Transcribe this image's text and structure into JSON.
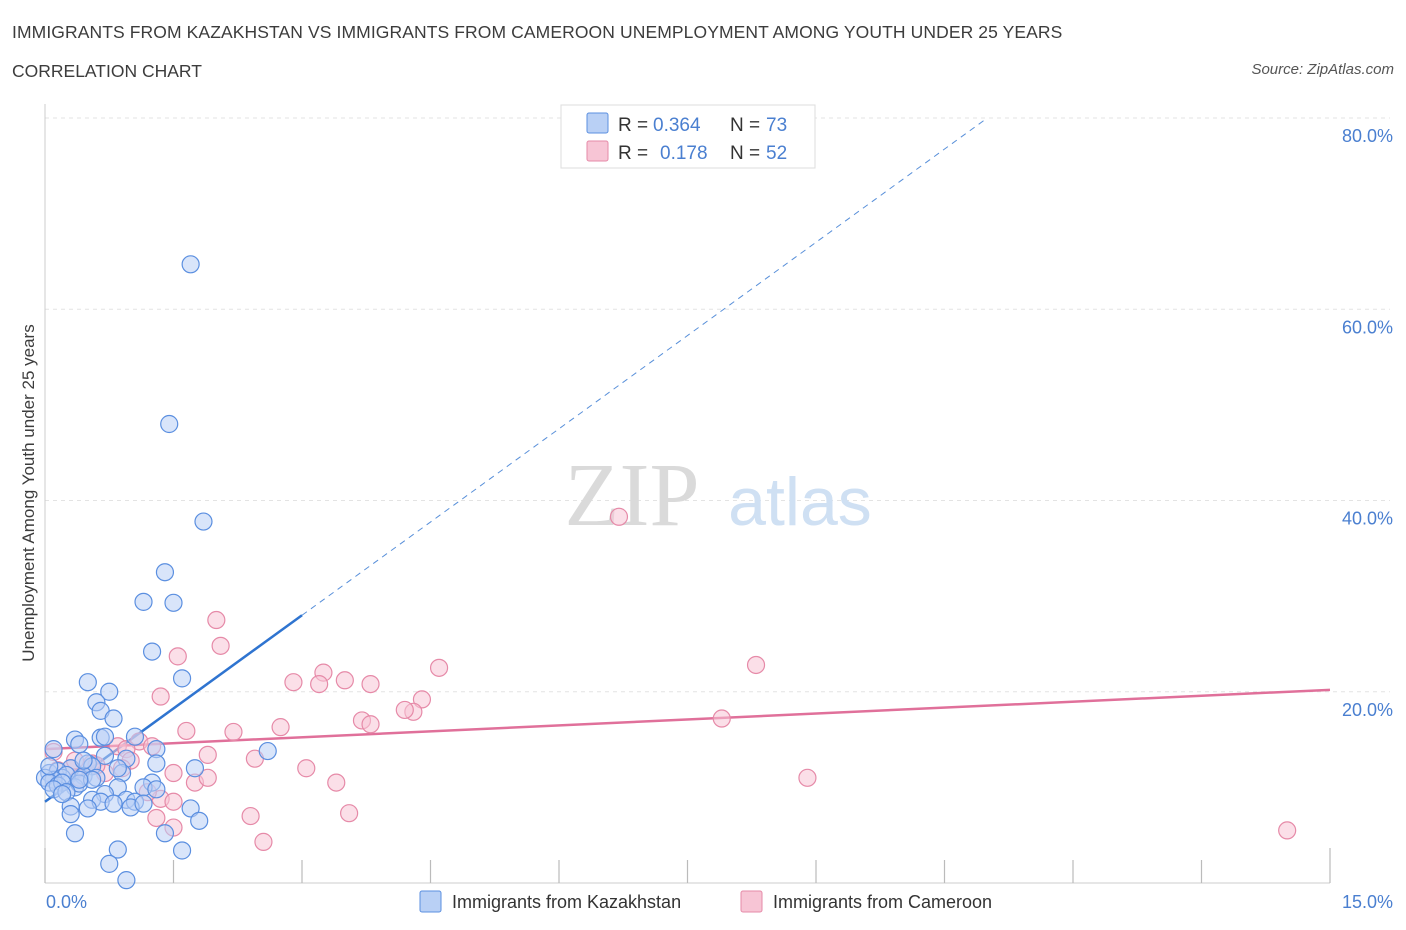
{
  "header": {
    "title": "IMMIGRANTS FROM KAZAKHSTAN VS IMMIGRANTS FROM CAMEROON UNEMPLOYMENT AMONG YOUTH UNDER 25 YEARS",
    "subtitle": "CORRELATION CHART",
    "source": "Source: ZipAtlas.com"
  },
  "colors": {
    "blue": "#5b8fe0",
    "blue_fill": "#b9d0f5",
    "blue_line": "#2f74d0",
    "pink": "#e68aa8",
    "pink_fill": "#f7c5d5",
    "pink_line": "#e0709a",
    "value_text": "#4a7fd0"
  },
  "watermark": {
    "zip": "ZIP",
    "atlas": "atlas"
  },
  "legend_top": [
    {
      "r_label": "R = ",
      "r_value": "0.364",
      "n_label": "N = ",
      "n_value": "73"
    },
    {
      "r_label": "R = ",
      "r_value": "0.178",
      "n_label": "N = ",
      "n_value": "52"
    }
  ],
  "chart_data": {
    "type": "scatter",
    "title": "IMMIGRANTS FROM KAZAKHSTAN VS IMMIGRANTS FROM CAMEROON UNEMPLOYMENT AMONG YOUTH UNDER 25 YEARS",
    "xlabel": "",
    "ylabel": "Unemployment Among Youth under 25 years",
    "xlim": [
      0,
      15
    ],
    "ylim": [
      0,
      80
    ],
    "x_tick_labels": [
      "0.0%",
      "15.0%"
    ],
    "y_ticks": [
      20,
      40,
      60,
      80
    ],
    "y_tick_labels": [
      "20.0%",
      "40.0%",
      "60.0%",
      "80.0%"
    ],
    "grid": true,
    "legend_position": "bottom-center",
    "series": [
      {
        "name": "Immigrants from Kazakhstan",
        "R": 0.364,
        "N": 73,
        "trend": {
          "x0": 0.0,
          "y0": 8.5,
          "x1": 3.0,
          "y1": 28.0,
          "dashed_to_x": 11.0,
          "dashed_to_y": 80.0
        },
        "points": [
          [
            1.7,
            64.7
          ],
          [
            1.45,
            48.0
          ],
          [
            1.85,
            37.8
          ],
          [
            1.4,
            32.5
          ],
          [
            1.15,
            29.4
          ],
          [
            1.5,
            29.3
          ],
          [
            1.25,
            24.2
          ],
          [
            1.6,
            21.4
          ],
          [
            0.5,
            21.0
          ],
          [
            0.75,
            20.0
          ],
          [
            0.6,
            18.9
          ],
          [
            0.65,
            18.0
          ],
          [
            0.8,
            17.2
          ],
          [
            0.35,
            15.0
          ],
          [
            0.65,
            15.2
          ],
          [
            0.7,
            15.3
          ],
          [
            1.05,
            15.3
          ],
          [
            0.4,
            14.5
          ],
          [
            0.1,
            14.0
          ],
          [
            1.3,
            14.0
          ],
          [
            2.6,
            13.8
          ],
          [
            0.7,
            13.3
          ],
          [
            0.95,
            13.0
          ],
          [
            0.5,
            12.5
          ],
          [
            0.55,
            12.2
          ],
          [
            0.3,
            12.0
          ],
          [
            0.05,
            11.5
          ],
          [
            0.15,
            11.7
          ],
          [
            0.2,
            11.0
          ],
          [
            0.25,
            11.3
          ],
          [
            0.45,
            11.2
          ],
          [
            0.6,
            11.0
          ],
          [
            0.1,
            10.8
          ],
          [
            0.0,
            11.0
          ],
          [
            0.05,
            10.5
          ],
          [
            0.15,
            10.2
          ],
          [
            0.35,
            10.0
          ],
          [
            0.4,
            10.4
          ],
          [
            0.2,
            10.5
          ],
          [
            0.9,
            11.5
          ],
          [
            1.25,
            10.5
          ],
          [
            1.15,
            10.0
          ],
          [
            0.85,
            10.0
          ],
          [
            0.1,
            9.8
          ],
          [
            0.25,
            9.5
          ],
          [
            0.7,
            9.3
          ],
          [
            0.55,
            8.7
          ],
          [
            0.65,
            8.5
          ],
          [
            0.3,
            8.0
          ],
          [
            0.95,
            8.7
          ],
          [
            1.05,
            8.5
          ],
          [
            0.8,
            8.3
          ],
          [
            1.0,
            7.9
          ],
          [
            0.3,
            7.2
          ],
          [
            0.5,
            7.8
          ],
          [
            1.7,
            7.8
          ],
          [
            1.8,
            6.5
          ],
          [
            0.35,
            5.2
          ],
          [
            1.4,
            5.2
          ],
          [
            0.85,
            3.5
          ],
          [
            1.6,
            3.4
          ],
          [
            0.75,
            2.0
          ],
          [
            0.95,
            0.3
          ],
          [
            1.75,
            12.0
          ],
          [
            1.3,
            9.8
          ],
          [
            1.15,
            8.3
          ],
          [
            0.45,
            12.8
          ],
          [
            0.85,
            12.0
          ],
          [
            0.2,
            9.3
          ],
          [
            0.55,
            10.8
          ],
          [
            1.3,
            12.5
          ],
          [
            0.4,
            10.8
          ],
          [
            0.05,
            12.2
          ]
        ]
      },
      {
        "name": "Immigrants from Cameroon",
        "R": 0.178,
        "N": 52,
        "trend": {
          "x0": 0.0,
          "y0": 14.0,
          "x1": 15.0,
          "y1": 20.2
        },
        "points": [
          [
            6.7,
            38.3
          ],
          [
            2.0,
            27.5
          ],
          [
            2.05,
            24.8
          ],
          [
            1.55,
            23.7
          ],
          [
            4.6,
            22.5
          ],
          [
            8.3,
            22.8
          ],
          [
            3.25,
            22.0
          ],
          [
            3.5,
            21.2
          ],
          [
            2.9,
            21.0
          ],
          [
            3.2,
            20.8
          ],
          [
            3.8,
            20.8
          ],
          [
            1.35,
            19.5
          ],
          [
            4.4,
            19.2
          ],
          [
            4.3,
            17.9
          ],
          [
            4.2,
            18.1
          ],
          [
            7.9,
            17.2
          ],
          [
            3.7,
            17.0
          ],
          [
            3.8,
            16.6
          ],
          [
            2.75,
            16.3
          ],
          [
            1.65,
            15.9
          ],
          [
            2.2,
            15.8
          ],
          [
            1.1,
            14.8
          ],
          [
            1.25,
            14.3
          ],
          [
            0.85,
            14.3
          ],
          [
            0.95,
            14.0
          ],
          [
            0.1,
            13.7
          ],
          [
            1.9,
            13.4
          ],
          [
            2.45,
            13.0
          ],
          [
            1.0,
            12.8
          ],
          [
            0.55,
            12.5
          ],
          [
            0.3,
            12.0
          ],
          [
            0.15,
            11.8
          ],
          [
            0.7,
            11.5
          ],
          [
            0.4,
            11.0
          ],
          [
            3.05,
            12.0
          ],
          [
            1.75,
            10.5
          ],
          [
            3.4,
            10.5
          ],
          [
            8.9,
            11.0
          ],
          [
            1.35,
            8.8
          ],
          [
            1.5,
            8.5
          ],
          [
            3.55,
            7.3
          ],
          [
            2.4,
            7.0
          ],
          [
            1.3,
            6.8
          ],
          [
            1.5,
            5.8
          ],
          [
            2.55,
            4.3
          ],
          [
            14.5,
            5.5
          ],
          [
            1.2,
            9.5
          ],
          [
            0.6,
            12.3
          ],
          [
            1.9,
            11.0
          ],
          [
            0.9,
            12.0
          ],
          [
            1.5,
            11.5
          ],
          [
            0.35,
            12.8
          ]
        ]
      }
    ]
  }
}
